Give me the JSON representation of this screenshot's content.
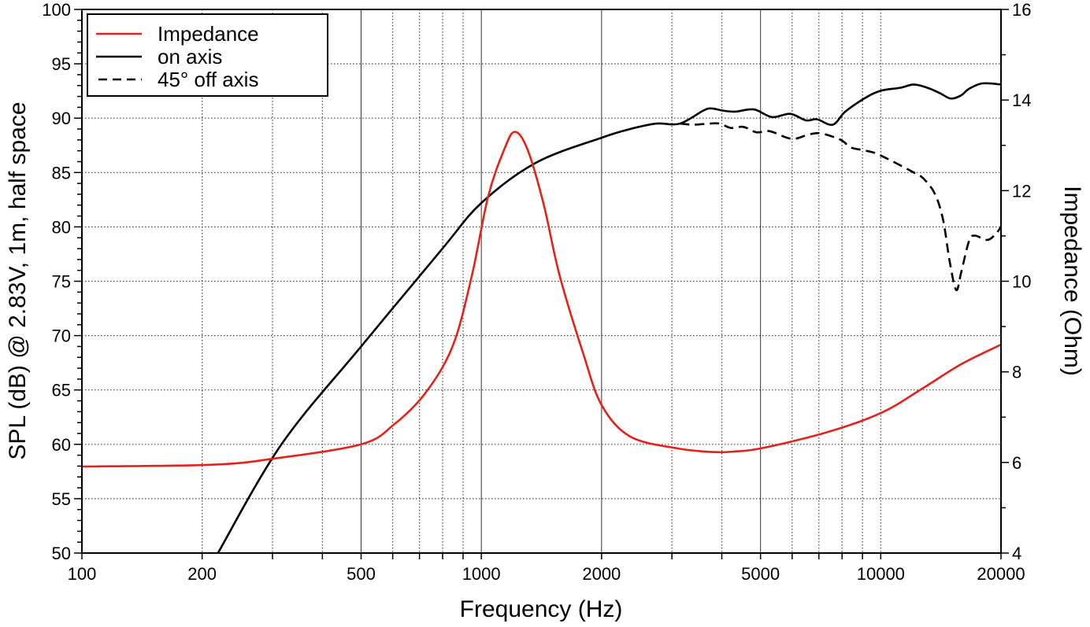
{
  "chart_data": {
    "type": "line",
    "xlabel": "Frequency (Hz)",
    "ylabel": "SPL (dB) @ 2.83V, 1m, half space",
    "y2label": "Impedance (Ohm)",
    "x_scale": "log",
    "xlim": [
      100,
      20000
    ],
    "ylim": [
      50,
      100
    ],
    "y2lim": [
      4,
      16
    ],
    "grid": true,
    "legend_position": "top-left",
    "x_ticks": [
      "100",
      "200",
      "500",
      "1000",
      "2000",
      "5000",
      "10000",
      "20000"
    ],
    "y_ticks": [
      "50",
      "55",
      "60",
      "65",
      "70",
      "75",
      "80",
      "85",
      "90",
      "95",
      "100"
    ],
    "y2_ticks": [
      "4",
      "6",
      "8",
      "10",
      "12",
      "14",
      "16"
    ],
    "series": [
      {
        "name": "Impedance",
        "axis": "right",
        "color": "#e2231a",
        "style": "solid",
        "x": [
          100,
          212,
          305,
          500,
          603,
          724,
          848,
          947,
          1040,
          1140,
          1213,
          1306,
          1432,
          1570,
          1800,
          2000,
          2360,
          3100,
          3800,
          4270,
          5000,
          7300,
          10000,
          12600,
          15900,
          20000
        ],
        "y": [
          5.91,
          5.95,
          6.09,
          6.4,
          6.83,
          7.53,
          8.57,
          10.13,
          11.87,
          12.9,
          13.3,
          12.9,
          11.7,
          10.13,
          8.4,
          7.27,
          6.57,
          6.31,
          6.23,
          6.24,
          6.31,
          6.66,
          7.09,
          7.61,
          8.17,
          8.6
        ]
      },
      {
        "name": "on axis",
        "axis": "left",
        "color": "#000000",
        "style": "solid",
        "x": [
          219,
          316,
          500,
          795,
          1000,
          1370,
          2000,
          2359,
          2741,
          3141,
          3597,
          3767,
          4015,
          4316,
          4813,
          5343,
          5932,
          6496,
          6923,
          7580,
          8150,
          9090,
          9954,
          11204,
          12100,
          13073,
          14060,
          14980,
          15895,
          16634,
          17963,
          20000
        ],
        "y": [
          50,
          60,
          69.0,
          77.9,
          82.2,
          85.9,
          88.2,
          89.0,
          89.5,
          89.5,
          90.7,
          90.9,
          90.7,
          90.6,
          90.8,
          90.1,
          90.4,
          89.8,
          89.9,
          89.4,
          90.6,
          91.8,
          92.5,
          92.8,
          93.1,
          92.8,
          92.3,
          91.8,
          92.1,
          92.7,
          93.2,
          93.1
        ]
      },
      {
        "name": "45° off axis",
        "axis": "left",
        "color": "#000000",
        "style": "dashed",
        "x": [
          3141,
          3394,
          3716,
          3948,
          4213,
          4530,
          4885,
          5277,
          5985,
          6606,
          7080,
          7941,
          8420,
          9220,
          9954,
          12100,
          12830,
          13680,
          14330,
          14880,
          15450,
          15895,
          16634,
          17190,
          18470,
          19350,
          20000
        ],
        "y": [
          89.5,
          89.4,
          89.5,
          89.5,
          89.1,
          89.2,
          88.7,
          88.8,
          88.1,
          88.5,
          88.6,
          88.0,
          87.3,
          87.0,
          86.6,
          85.0,
          84.4,
          83.0,
          80.6,
          76.8,
          74.2,
          75.8,
          78.7,
          79.2,
          78.8,
          79.3,
          80.0
        ]
      }
    ]
  }
}
